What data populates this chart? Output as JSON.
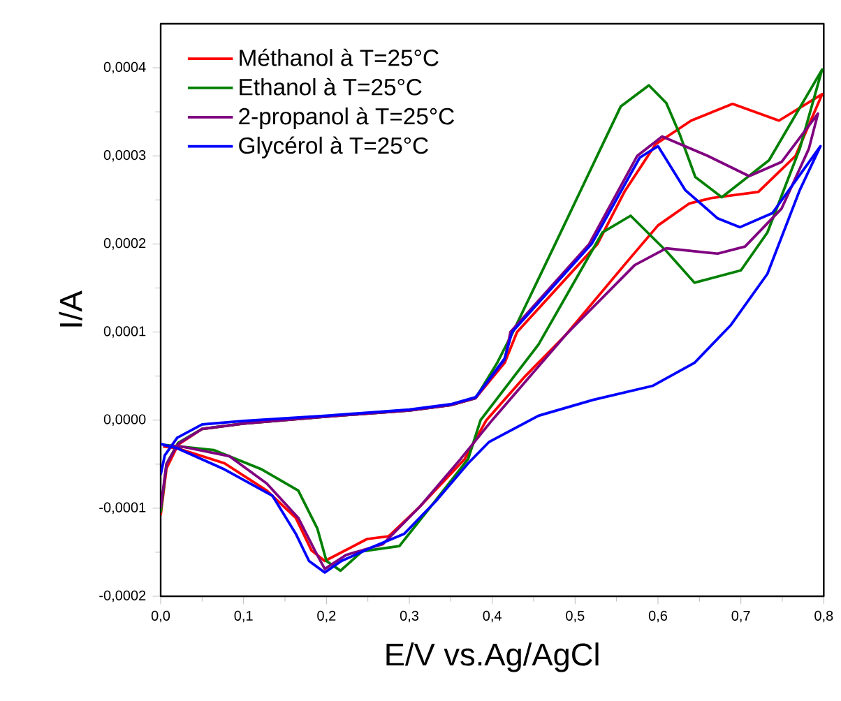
{
  "chart_data": {
    "type": "line",
    "xlabel": "E/V vs.Ag/AgCl",
    "ylabel": "I/A",
    "xlim": [
      0,
      0.8
    ],
    "ylim": [
      -0.0002,
      0.00045
    ],
    "xticks": [
      {
        "value": 0,
        "label": "0,0"
      },
      {
        "value": 0.1,
        "label": "0,1"
      },
      {
        "value": 0.2,
        "label": "0,2"
      },
      {
        "value": 0.3,
        "label": "0,3"
      },
      {
        "value": 0.4,
        "label": "0,4"
      },
      {
        "value": 0.5,
        "label": "0,5"
      },
      {
        "value": 0.6,
        "label": "0,6"
      },
      {
        "value": 0.7,
        "label": "0,7"
      },
      {
        "value": 0.8,
        "label": "0,8"
      }
    ],
    "yticks": [
      {
        "value": -0.0002,
        "label": "-0,0002"
      },
      {
        "value": -0.0001,
        "label": "-0,0001"
      },
      {
        "value": 0,
        "label": "0,0000"
      },
      {
        "value": 0.0001,
        "label": "0,0001"
      },
      {
        "value": 0.0002,
        "label": "0,0002"
      },
      {
        "value": 0.0003,
        "label": "0,0003"
      },
      {
        "value": 0.0004,
        "label": "0,0004"
      }
    ],
    "legend": "top left",
    "series": [
      {
        "name": "Méthanol à T=25°C",
        "color": "#ff0000",
        "x": [
          0,
          0.007,
          0.021,
          0.05,
          0.1,
          0.2,
          0.3,
          0.35,
          0.38,
          0.415,
          0.43,
          0.527,
          0.56,
          0.597,
          0.64,
          0.69,
          0.746,
          0.798,
          0.766,
          0.721,
          0.664,
          0.638,
          0.6,
          0.562,
          0.489,
          0.44,
          0.393,
          0.367,
          0.313,
          0.275,
          0.249,
          0.198,
          0.182,
          0.163,
          0.128,
          0.077,
          0.02,
          0.003
        ],
        "values": [
          -0.000108,
          -5.5e-05,
          -2.8e-05,
          -1e-05,
          -4e-06,
          4e-06,
          1.1e-05,
          1.7e-05,
          2.5e-05,
          6.5e-05,
          0.0001,
          0.0002,
          0.00026,
          0.000313,
          0.00034,
          0.000359,
          0.00034,
          0.00037,
          0.0003,
          0.000259,
          0.000252,
          0.000246,
          0.000221,
          0.000179,
          9.7e-05,
          5e-05,
          0,
          -4.4e-05,
          -9.8e-05,
          -0.000132,
          -0.000135,
          -0.00016,
          -0.000148,
          -0.000111,
          -8e-05,
          -4.9e-05,
          -3.2e-05,
          -3e-05
        ]
      },
      {
        "name": "Ethanol à T=25°C",
        "color": "#008000",
        "x": [
          0,
          0.007,
          0.021,
          0.05,
          0.1,
          0.2,
          0.3,
          0.35,
          0.38,
          0.406,
          0.425,
          0.476,
          0.555,
          0.589,
          0.61,
          0.626,
          0.645,
          0.677,
          0.734,
          0.798,
          0.771,
          0.732,
          0.7,
          0.644,
          0.61,
          0.567,
          0.533,
          0.456,
          0.386,
          0.371,
          0.326,
          0.288,
          0.243,
          0.217,
          0.2,
          0.189,
          0.166,
          0.122,
          0.064,
          0.003
        ],
        "values": [
          -0.000105,
          -5e-05,
          -2.6e-05,
          -1e-05,
          -4e-06,
          4e-06,
          1.1e-05,
          1.7e-05,
          2.5e-05,
          6.5e-05,
          0.0001,
          0.0002,
          0.000356,
          0.00038,
          0.00036,
          0.000325,
          0.000276,
          0.000253,
          0.000295,
          0.000398,
          0.000308,
          0.000213,
          0.00017,
          0.000156,
          0.000192,
          0.000232,
          0.000213,
          8.6e-05,
          0,
          -4.4e-05,
          -9.8e-05,
          -0.000143,
          -0.000149,
          -0.000171,
          -0.00016,
          -0.000123,
          -8e-05,
          -5.6e-05,
          -3.4e-05,
          -2.8e-05
        ]
      },
      {
        "name": "2-propanol à T=25°C",
        "color": "#800080",
        "x": [
          0,
          0.007,
          0.021,
          0.05,
          0.1,
          0.2,
          0.3,
          0.35,
          0.38,
          0.415,
          0.422,
          0.517,
          0.575,
          0.605,
          0.66,
          0.71,
          0.749,
          0.793,
          0.782,
          0.749,
          0.705,
          0.672,
          0.61,
          0.572,
          0.489,
          0.4,
          0.362,
          0.313,
          0.268,
          0.224,
          0.198,
          0.186,
          0.166,
          0.128,
          0.083,
          0.025,
          0.003
        ],
        "values": [
          -0.0001,
          -5e-05,
          -2.7e-05,
          -1e-05,
          -4e-06,
          4e-06,
          1.1e-05,
          1.7e-05,
          2.5e-05,
          6.8e-05,
          0.0001,
          0.0002,
          0.0003,
          0.000322,
          0.0003,
          0.000277,
          0.000293,
          0.000348,
          0.000308,
          0.00024,
          0.000197,
          0.000189,
          0.000195,
          0.000176,
          9.7e-05,
          0,
          -4.4e-05,
          -9.8e-05,
          -0.000141,
          -0.000153,
          -0.000169,
          -0.000148,
          -0.000111,
          -7.2e-05,
          -4.1e-05,
          -3e-05,
          -2.9e-05
        ]
      },
      {
        "name": "Glycérol à T=25°C",
        "color": "#0000ff",
        "x": [
          0,
          0.005,
          0.02,
          0.05,
          0.1,
          0.2,
          0.3,
          0.35,
          0.38,
          0.415,
          0.424,
          0.52,
          0.578,
          0.6,
          0.633,
          0.672,
          0.699,
          0.738,
          0.796,
          0.771,
          0.732,
          0.688,
          0.644,
          0.594,
          0.522,
          0.456,
          0.396,
          0.371,
          0.332,
          0.294,
          0.256,
          0.218,
          0.198,
          0.179,
          0.163,
          0.135,
          0.077,
          0.02,
          0
        ],
        "values": [
          -6.2e-05,
          -4e-05,
          -2e-05,
          -5e-06,
          -1e-06,
          5e-06,
          1.2e-05,
          1.8e-05,
          2.6e-05,
          7e-05,
          0.0001,
          0.0002,
          0.000298,
          0.000311,
          0.000261,
          0.000229,
          0.000219,
          0.000235,
          0.000311,
          0.000261,
          0.000166,
          0.000108,
          6.5e-05,
          3.9e-05,
          2.3e-05,
          5e-06,
          -2.5e-05,
          -4.9e-05,
          -9.2e-05,
          -0.000129,
          -0.000144,
          -0.00016,
          -0.000173,
          -0.00016,
          -0.000129,
          -8.6e-05,
          -5.6e-05,
          -3.2e-05,
          -2.7e-05
        ]
      }
    ]
  }
}
